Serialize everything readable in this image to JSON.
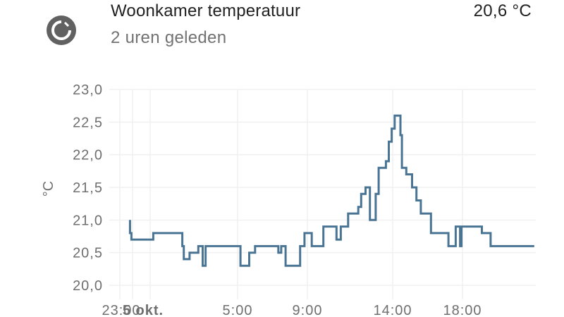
{
  "card": {
    "icon": "thermometer-gauge-icon",
    "title": "Woonkamer temperatuur",
    "subtitle": "2 uren geleden",
    "value": "20,6 °C"
  },
  "colors": {
    "line": "#4a7494",
    "grid": "#f0f0f0",
    "text": "#212121",
    "secondary_text": "#727272",
    "icon": "#616161"
  },
  "chart_data": {
    "type": "line",
    "step": true,
    "title": "",
    "xlabel": "",
    "ylabel": "°C",
    "ylim": [
      20.0,
      23.0
    ],
    "y_ticks": [
      "23,0",
      "22,5",
      "22,0",
      "21,5",
      "21,0",
      "20,5",
      "20,0"
    ],
    "x_ticks": [
      "23:00",
      "5 okt.",
      "5:00",
      "9:00",
      "14:00",
      "18:00"
    ],
    "x_ticks_note": "'23:00' and '5 okt.' labels overlap at the left",
    "grid": true,
    "legend": false,
    "series": [
      {
        "name": "Woonkamer temperatuur",
        "points": [
          {
            "t": "~22:50",
            "y": 21.0
          },
          {
            "t": "~22:50",
            "y": 20.8
          },
          {
            "t": "~22:55",
            "y": 20.7
          },
          {
            "t": "~0:10",
            "y": 20.8
          },
          {
            "t": "~1:50",
            "y": 20.6
          },
          {
            "t": "~1:55",
            "y": 20.4
          },
          {
            "t": "~2:15",
            "y": 20.5
          },
          {
            "t": "~2:45",
            "y": 20.6
          },
          {
            "t": "~3:00",
            "y": 20.3
          },
          {
            "t": "~3:10",
            "y": 20.6
          },
          {
            "t": "~5:10",
            "y": 20.3
          },
          {
            "t": "~5:40",
            "y": 20.5
          },
          {
            "t": "~6:00",
            "y": 20.6
          },
          {
            "t": "~7:20",
            "y": 20.5
          },
          {
            "t": "~7:30",
            "y": 20.6
          },
          {
            "t": "~7:45",
            "y": 20.3
          },
          {
            "t": "~8:35",
            "y": 20.6
          },
          {
            "t": "~8:50",
            "y": 20.8
          },
          {
            "t": "~9:15",
            "y": 20.6
          },
          {
            "t": "~9:55",
            "y": 20.9
          },
          {
            "t": "~10:40",
            "y": 20.7
          },
          {
            "t": "~10:55",
            "y": 20.9
          },
          {
            "t": "~11:20",
            "y": 21.1
          },
          {
            "t": "~11:55",
            "y": 21.2
          },
          {
            "t": "~12:05",
            "y": 21.4
          },
          {
            "t": "~12:20",
            "y": 21.5
          },
          {
            "t": "~12:35",
            "y": 21.0
          },
          {
            "t": "~12:55",
            "y": 21.4
          },
          {
            "t": "~13:05",
            "y": 21.8
          },
          {
            "t": "~13:30",
            "y": 21.9
          },
          {
            "t": "~13:40",
            "y": 22.2
          },
          {
            "t": "~13:50",
            "y": 22.4
          },
          {
            "t": "~14:00",
            "y": 22.6
          },
          {
            "t": "~14:20",
            "y": 22.3
          },
          {
            "t": "~14:25",
            "y": 21.8
          },
          {
            "t": "~14:40",
            "y": 21.7
          },
          {
            "t": "~15:00",
            "y": 21.5
          },
          {
            "t": "~15:15",
            "y": 21.3
          },
          {
            "t": "~15:30",
            "y": 21.1
          },
          {
            "t": "~16:05",
            "y": 20.8
          },
          {
            "t": "~17:05",
            "y": 20.6
          },
          {
            "t": "~17:30",
            "y": 20.9
          },
          {
            "t": "~17:45",
            "y": 20.6
          },
          {
            "t": "~17:50",
            "y": 20.9
          },
          {
            "t": "~19:00",
            "y": 20.8
          },
          {
            "t": "~19:30",
            "y": 20.6
          },
          {
            "t": "~22:00",
            "y": 20.6
          }
        ]
      }
    ]
  }
}
